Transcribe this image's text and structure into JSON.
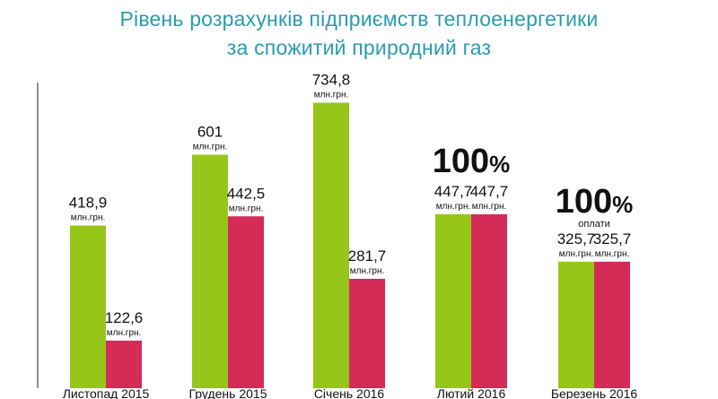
{
  "title_line1": "Рівень розрахунків підприємств теплоенергетики",
  "title_line2": "за спожитий природний газ",
  "chart_data": {
    "type": "bar",
    "categories": [
      "Листопад 2015",
      "Грудень 2015",
      "Січень 2016",
      "Лютий 2016",
      "Березень 2016"
    ],
    "series": [
      {
        "values": [
          418.9,
          601,
          734.8,
          447.7,
          325.7
        ],
        "labels": [
          "418,9",
          "601",
          "734,8",
          "447,7",
          "325,7"
        ],
        "color": "#97c61a"
      },
      {
        "values": [
          122.6,
          442.5,
          281.7,
          447.7,
          325.7
        ],
        "labels": [
          "122,6",
          "442,5",
          "281,7",
          "447,7",
          "325,7"
        ],
        "color": "#d42b57"
      }
    ],
    "unit_label": "млн.грн.",
    "ylim": [
      0,
      780
    ],
    "annotations": [
      {
        "category_index": 3,
        "percent": "100%",
        "caption": ""
      },
      {
        "category_index": 4,
        "percent": "100%",
        "caption": "оплати"
      }
    ]
  }
}
